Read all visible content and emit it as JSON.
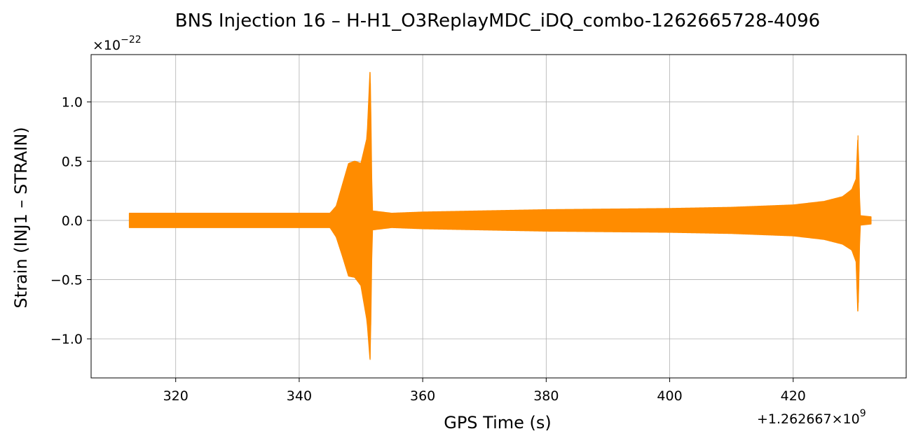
{
  "chart_data": {
    "type": "line",
    "title": "BNS Injection 16 – H-H1_O3ReplayMDC_iDQ_combo-1262665728-4096",
    "xlabel": "GPS Time (s)",
    "ylabel": "Strain (INJ1 – STRAIN)",
    "x_offset_label": "+1.262667×10",
    "x_offset_exponent": "9",
    "y_scale_label": "×10",
    "y_scale_exponent": "−22",
    "xlim": [
      306.3,
      438.3
    ],
    "ylim": [
      -1.33,
      1.4
    ],
    "xticks": [
      320,
      340,
      360,
      380,
      400,
      420
    ],
    "xtick_labels": [
      "320",
      "340",
      "360",
      "380",
      "400",
      "420"
    ],
    "yticks": [
      1.0,
      0.5,
      0.0,
      -0.5,
      -1.0
    ],
    "ytick_labels": [
      "1.0",
      "0.5",
      "0.0",
      "−0.5",
      "−1.0"
    ],
    "grid": true,
    "line_color": "#ff8c00",
    "series": [
      {
        "x_range": [
          312.5,
          432.6
        ],
        "envelope_upper": [
          [
            312.5,
            0.06
          ],
          [
            320,
            0.06
          ],
          [
            330,
            0.06
          ],
          [
            340,
            0.06
          ],
          [
            345,
            0.06
          ],
          [
            346,
            0.12
          ],
          [
            347,
            0.3
          ],
          [
            348,
            0.48
          ],
          [
            349,
            0.5
          ],
          [
            350,
            0.48
          ],
          [
            351,
            0.7
          ],
          [
            351.5,
            1.29
          ],
          [
            351.8,
            0.08
          ],
          [
            355,
            0.06
          ],
          [
            360,
            0.07
          ],
          [
            380,
            0.09
          ],
          [
            400,
            0.1
          ],
          [
            410,
            0.11
          ],
          [
            420,
            0.13
          ],
          [
            425,
            0.16
          ],
          [
            428,
            0.2
          ],
          [
            429.5,
            0.26
          ],
          [
            430.2,
            0.35
          ],
          [
            430.5,
            0.72
          ],
          [
            430.8,
            0.04
          ],
          [
            432.6,
            0.03
          ]
        ],
        "envelope_lower": [
          [
            312.5,
            -0.06
          ],
          [
            320,
            -0.06
          ],
          [
            330,
            -0.06
          ],
          [
            340,
            -0.06
          ],
          [
            345,
            -0.06
          ],
          [
            346,
            -0.14
          ],
          [
            347,
            -0.3
          ],
          [
            348,
            -0.47
          ],
          [
            349,
            -0.48
          ],
          [
            350,
            -0.55
          ],
          [
            351,
            -0.85
          ],
          [
            351.5,
            -1.19
          ],
          [
            351.8,
            -0.08
          ],
          [
            355,
            -0.06
          ],
          [
            360,
            -0.07
          ],
          [
            380,
            -0.09
          ],
          [
            400,
            -0.1
          ],
          [
            410,
            -0.11
          ],
          [
            420,
            -0.13
          ],
          [
            425,
            -0.16
          ],
          [
            428,
            -0.2
          ],
          [
            429.5,
            -0.25
          ],
          [
            430.2,
            -0.35
          ],
          [
            430.5,
            -0.82
          ],
          [
            430.8,
            -0.04
          ],
          [
            432.6,
            -0.03
          ]
        ]
      }
    ]
  }
}
